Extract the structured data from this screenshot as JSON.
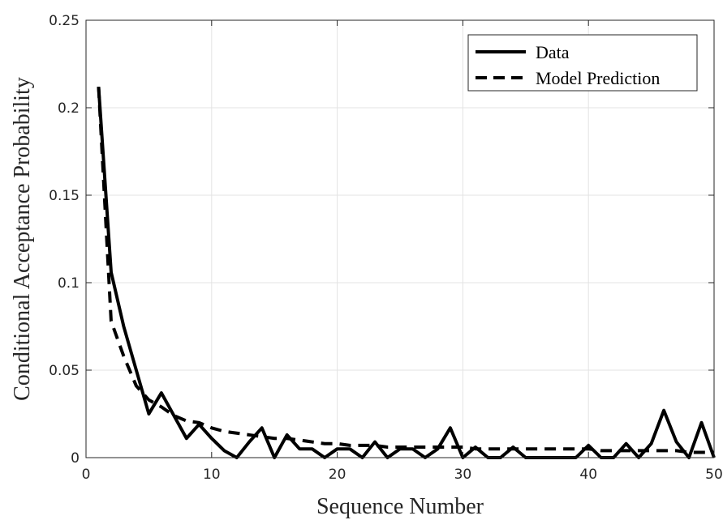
{
  "chart_data": {
    "type": "line",
    "title": "",
    "xlabel": "Sequence Number",
    "ylabel": "Conditional Acceptance Probability",
    "xlim": [
      0,
      50
    ],
    "ylim": [
      0,
      0.25
    ],
    "x_ticks": [
      0,
      10,
      20,
      30,
      40,
      50
    ],
    "y_ticks": [
      0,
      0.05,
      0.1,
      0.15,
      0.2,
      0.25
    ],
    "x_tick_labels": [
      "0",
      "10",
      "20",
      "30",
      "40",
      "50"
    ],
    "y_tick_labels": [
      "0",
      "0.05",
      "0.1",
      "0.15",
      "0.2",
      "0.25"
    ],
    "grid": true,
    "legend_position": "top-right",
    "series": [
      {
        "name": "Data",
        "style": "solid",
        "color": "#000000",
        "x": [
          1,
          2,
          3,
          4,
          5,
          6,
          7,
          8,
          9,
          10,
          11,
          12,
          13,
          14,
          15,
          16,
          17,
          18,
          19,
          20,
          21,
          22,
          23,
          24,
          25,
          26,
          27,
          28,
          29,
          30,
          31,
          32,
          33,
          34,
          35,
          36,
          37,
          38,
          39,
          40,
          41,
          42,
          43,
          44,
          45,
          46,
          47,
          48,
          49,
          50
        ],
        "values": [
          0.212,
          0.106,
          0.075,
          0.05,
          0.025,
          0.037,
          0.024,
          0.011,
          0.019,
          0.011,
          0.004,
          0.0,
          0.009,
          0.017,
          0.0,
          0.013,
          0.005,
          0.005,
          0.0,
          0.005,
          0.005,
          0.0,
          0.009,
          0.0,
          0.005,
          0.005,
          0.0,
          0.005,
          0.017,
          0.0,
          0.006,
          0.0,
          0.0,
          0.006,
          0.0,
          0.0,
          0.0,
          0.0,
          0.0,
          0.007,
          0.0,
          0.0,
          0.008,
          0.0,
          0.008,
          0.027,
          0.009,
          0.0,
          0.02,
          0.0
        ]
      },
      {
        "name": "Model Prediction",
        "style": "dashed",
        "color": "#000000",
        "x": [
          1,
          2,
          3,
          4,
          5,
          6,
          7,
          8,
          9,
          10,
          11,
          12,
          13,
          14,
          15,
          16,
          17,
          18,
          19,
          20,
          21,
          22,
          23,
          24,
          25,
          26,
          27,
          28,
          29,
          30,
          31,
          32,
          33,
          34,
          35,
          36,
          37,
          38,
          39,
          40,
          41,
          42,
          43,
          44,
          45,
          46,
          47,
          48,
          49,
          50
        ],
        "values": [
          0.212,
          0.078,
          0.058,
          0.041,
          0.033,
          0.029,
          0.024,
          0.021,
          0.02,
          0.017,
          0.015,
          0.014,
          0.013,
          0.012,
          0.011,
          0.011,
          0.01,
          0.009,
          0.008,
          0.008,
          0.007,
          0.007,
          0.007,
          0.006,
          0.006,
          0.006,
          0.006,
          0.006,
          0.006,
          0.006,
          0.005,
          0.005,
          0.005,
          0.005,
          0.005,
          0.005,
          0.005,
          0.005,
          0.005,
          0.005,
          0.004,
          0.004,
          0.004,
          0.004,
          0.004,
          0.004,
          0.004,
          0.003,
          0.003,
          0.003
        ]
      }
    ]
  }
}
